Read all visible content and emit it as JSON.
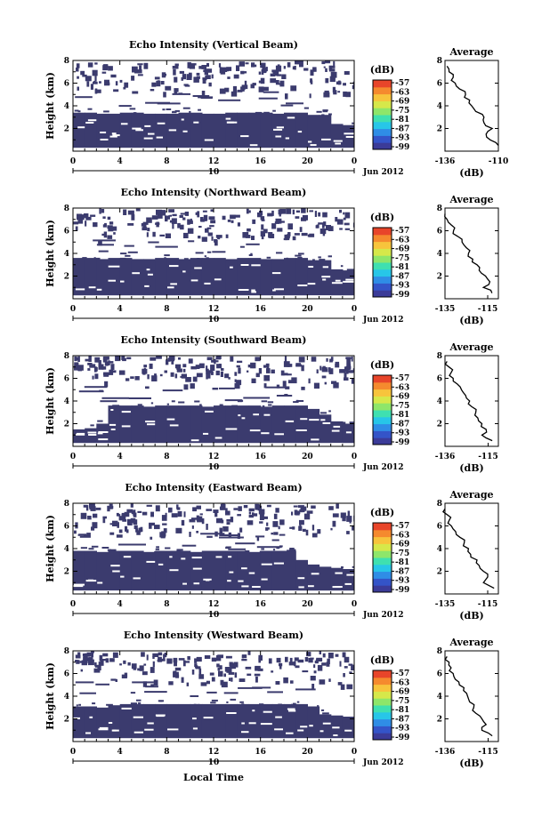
{
  "figure": {
    "xlabel": "Local Time",
    "date_label": "10",
    "month_label": "Jun 2012"
  },
  "colors": {
    "echo": "#3b3b6e",
    "background": "#ffffff",
    "colorbar": [
      "#3b3b98",
      "#3454c8",
      "#2f8de6",
      "#27c6e8",
      "#3fe0b0",
      "#8ee66a",
      "#d6e84a",
      "#f7c43c",
      "#f58a2e",
      "#e8452a"
    ]
  },
  "colorbar": {
    "unit": "(dB)",
    "ticks": [
      "-57",
      "-63",
      "-69",
      "-75",
      "-81",
      "-87",
      "-93",
      "-99"
    ]
  },
  "chart_data": [
    {
      "type": "heatmap",
      "title": "Echo Intensity (Vertical Beam)",
      "ylabel": "Height (km)",
      "xlim": [
        0,
        24
      ],
      "ylim": [
        0,
        8
      ],
      "xticks": [
        "0",
        "4",
        "8",
        "12",
        "16",
        "20",
        "0"
      ],
      "yticks": [
        "2",
        "4",
        "6",
        "8"
      ],
      "dense_top_km": [
        3.4,
        3.4,
        3.3,
        3.3,
        3.4,
        3.4,
        3.3,
        3.3,
        3.3,
        3.4,
        3.4,
        3.3,
        3.3,
        3.4,
        3.4,
        3.4,
        3.4,
        3.3,
        3.4,
        3.4,
        3.2,
        3.2,
        2.4,
        2.3
      ],
      "sparse_top_km": 7.8,
      "profile": {
        "title": "Average",
        "xlabel": "(dB)",
        "xticks": [
          "-136",
          "-110"
        ],
        "xlim": [
          -136,
          -110
        ],
        "ylim": [
          0,
          8
        ],
        "yticks": [
          "2",
          "4",
          "6",
          "8"
        ],
        "heights": [
          0.5,
          1.0,
          1.5,
          2.0,
          2.5,
          3.0,
          3.5,
          4.0,
          4.5,
          5.0,
          5.5,
          6.0,
          6.5,
          7.0,
          7.5
        ],
        "values": [
          -110,
          -114,
          -116,
          -113,
          -117,
          -117,
          -121,
          -123,
          -124,
          -126,
          -129,
          -131,
          -132,
          -134,
          -135
        ]
      }
    },
    {
      "type": "heatmap",
      "title": "Echo Intensity (Northward Beam)",
      "ylabel": "Height (km)",
      "xlim": [
        0,
        24
      ],
      "ylim": [
        0,
        8
      ],
      "xticks": [
        "0",
        "4",
        "8",
        "12",
        "16",
        "20",
        "0"
      ],
      "yticks": [
        "2",
        "4",
        "6",
        "8"
      ],
      "dense_top_km": [
        3.6,
        3.6,
        3.5,
        3.6,
        3.6,
        3.5,
        3.5,
        3.6,
        3.6,
        3.5,
        3.6,
        3.6,
        3.6,
        3.5,
        3.6,
        3.6,
        3.5,
        3.5,
        3.6,
        3.6,
        3.4,
        3.4,
        2.6,
        2.5
      ],
      "sparse_top_km": 7.8,
      "profile": {
        "title": "Average",
        "xlabel": "(dB)",
        "xticks": [
          "-135",
          "-115"
        ],
        "xlim": [
          -135,
          -110
        ],
        "ylim": [
          0,
          8
        ],
        "yticks": [
          "2",
          "4",
          "6",
          "8"
        ],
        "heights": [
          0.5,
          1.0,
          1.5,
          2.0,
          2.5,
          3.0,
          3.5,
          4.0,
          4.5,
          5.0,
          5.5,
          6.0,
          6.5,
          7.0,
          7.5
        ],
        "values": [
          -113,
          -117,
          -114,
          -116,
          -119,
          -120,
          -122,
          -124,
          -125,
          -127,
          -129,
          -131,
          -132,
          -134,
          -135
        ]
      }
    },
    {
      "type": "heatmap",
      "title": "Echo Intensity (Southward Beam)",
      "ylabel": "Height (km)",
      "xlim": [
        0,
        24
      ],
      "ylim": [
        0,
        8
      ],
      "xticks": [
        "0",
        "4",
        "8",
        "12",
        "16",
        "20",
        "0"
      ],
      "yticks": [
        "2",
        "4",
        "6",
        "8"
      ],
      "dense_top_km": [
        1.5,
        1.6,
        2.0,
        3.6,
        3.6,
        3.6,
        3.5,
        3.6,
        3.6,
        3.6,
        3.6,
        3.5,
        3.6,
        3.6,
        3.6,
        3.6,
        3.5,
        3.6,
        3.6,
        3.6,
        3.3,
        2.8,
        2.2,
        2.0
      ],
      "sparse_top_km": 7.8,
      "profile": {
        "title": "Average",
        "xlabel": "(dB)",
        "xticks": [
          "-136",
          "-115"
        ],
        "xlim": [
          -136,
          -110
        ],
        "ylim": [
          0,
          8
        ],
        "yticks": [
          "2",
          "4",
          "6",
          "8"
        ],
        "heights": [
          0.5,
          1.0,
          1.5,
          2.0,
          2.5,
          3.0,
          3.5,
          4.0,
          4.5,
          5.0,
          5.5,
          6.0,
          6.5,
          7.0,
          7.5
        ],
        "values": [
          -113,
          -118,
          -116,
          -118,
          -120,
          -121,
          -123,
          -124,
          -126,
          -128,
          -130,
          -132,
          -133,
          -134,
          -135
        ]
      }
    },
    {
      "type": "heatmap",
      "title": "Echo Intensity (Eastward Beam)",
      "ylabel": "Height (km)",
      "xlim": [
        0,
        24
      ],
      "ylim": [
        0,
        8
      ],
      "xticks": [
        "0",
        "4",
        "8",
        "12",
        "16",
        "20",
        "0"
      ],
      "yticks": [
        "2",
        "4",
        "6",
        "8"
      ],
      "dense_top_km": [
        3.8,
        3.8,
        3.7,
        3.8,
        3.8,
        3.8,
        3.7,
        3.8,
        3.8,
        3.8,
        3.7,
        3.8,
        3.8,
        3.8,
        3.8,
        3.7,
        3.8,
        3.8,
        3.8,
        3.0,
        2.6,
        2.4,
        2.3,
        2.2
      ],
      "sparse_top_km": 7.8,
      "profile": {
        "title": "Average",
        "xlabel": "(dB)",
        "xticks": [
          "-135",
          "-115"
        ],
        "xlim": [
          -135,
          -110
        ],
        "ylim": [
          0,
          8
        ],
        "yticks": [
          "2",
          "4",
          "6",
          "8"
        ],
        "heights": [
          0.5,
          1.0,
          1.5,
          2.0,
          2.5,
          3.0,
          3.5,
          4.0,
          4.5,
          5.0,
          5.5,
          6.0,
          6.5,
          7.0,
          7.5
        ],
        "values": [
          -112,
          -117,
          -115,
          -117,
          -119,
          -120,
          -123,
          -124,
          -126,
          -128,
          -130,
          -132,
          -133,
          -134,
          -135
        ]
      }
    },
    {
      "type": "heatmap",
      "title": "Echo Intensity (Westward Beam)",
      "ylabel": "Height (km)",
      "xlim": [
        0,
        24
      ],
      "ylim": [
        0,
        8
      ],
      "xticks": [
        "0",
        "4",
        "8",
        "12",
        "16",
        "20",
        "0"
      ],
      "yticks": [
        "2",
        "4",
        "6",
        "8"
      ],
      "dense_top_km": [
        3.1,
        3.1,
        3.0,
        3.2,
        3.3,
        3.3,
        3.3,
        3.3,
        3.3,
        3.3,
        3.3,
        3.3,
        3.3,
        3.3,
        3.3,
        3.3,
        3.3,
        3.3,
        3.3,
        3.3,
        3.1,
        2.4,
        2.3,
        2.2
      ],
      "sparse_top_km": 7.8,
      "profile": {
        "title": "Average",
        "xlabel": "(dB)",
        "xticks": [
          "-136",
          "-115"
        ],
        "xlim": [
          -136,
          -110
        ],
        "ylim": [
          0,
          8
        ],
        "yticks": [
          "2",
          "4",
          "6",
          "8"
        ],
        "heights": [
          0.5,
          1.0,
          1.5,
          2.0,
          2.5,
          3.0,
          3.5,
          4.0,
          4.5,
          5.0,
          5.5,
          6.0,
          6.5,
          7.0,
          7.5
        ],
        "values": [
          -113,
          -118,
          -116,
          -118,
          -121,
          -122,
          -124,
          -125,
          -127,
          -129,
          -131,
          -132,
          -133,
          -134,
          -135
        ]
      }
    }
  ]
}
